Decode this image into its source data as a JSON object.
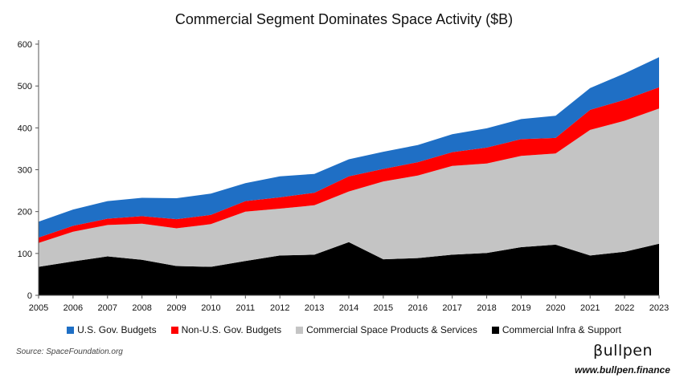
{
  "chart_data": {
    "type": "area",
    "stacked": true,
    "title": "Commercial Segment Dominates Space Activity ($B)",
    "x": [
      "2005",
      "2006",
      "2007",
      "2008",
      "2009",
      "2010",
      "2011",
      "2012",
      "2013",
      "2014",
      "2015",
      "2016",
      "2017",
      "2018",
      "2019",
      "2020",
      "2021",
      "2022",
      "2023"
    ],
    "ylim": [
      0,
      600
    ],
    "yticks": [
      "0",
      "100",
      "200",
      "300",
      "400",
      "500",
      "600"
    ],
    "grid": false,
    "legend_position": "bottom",
    "series": [
      {
        "name": "Commercial Infra & Support",
        "color": "#000000",
        "values": [
          68,
          81,
          93,
          85,
          70,
          68,
          82,
          95,
          97,
          127,
          86,
          89,
          97,
          101,
          115,
          121,
          95,
          104,
          123
        ]
      },
      {
        "name": "Commercial Space Products & Services",
        "color": "#c4c4c4",
        "values": [
          57,
          71,
          75,
          86,
          90,
          102,
          118,
          112,
          118,
          121,
          186,
          197,
          212,
          214,
          218,
          218,
          300,
          313,
          323
        ]
      },
      {
        "name": "Non-U.S. Gov. Budgets",
        "color": "#ff0000",
        "values": [
          13,
          14,
          15,
          18,
          22,
          22,
          25,
          27,
          30,
          36,
          30,
          32,
          33,
          38,
          40,
          37,
          48,
          50,
          51
        ]
      },
      {
        "name": "U.S. Gov. Budgets",
        "color": "#1f6fc5",
        "values": [
          38,
          39,
          42,
          44,
          50,
          51,
          43,
          50,
          45,
          41,
          41,
          41,
          43,
          46,
          48,
          53,
          52,
          63,
          72
        ]
      }
    ],
    "legend_order": [
      "U.S. Gov. Budgets",
      "Non-U.S. Gov. Budgets",
      "Commercial Space Products & Services",
      "Commercial Infra & Support"
    ]
  },
  "source": "Source: SpaceFoundation.org",
  "brand": {
    "logo": "βullpen",
    "url": "www.bullpen.finance"
  }
}
